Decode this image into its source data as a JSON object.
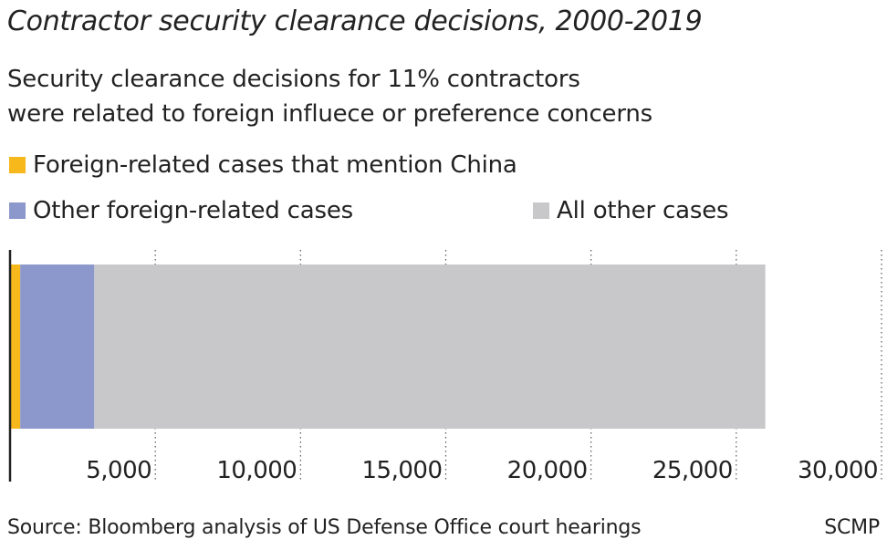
{
  "title": "Contractor security clearance decisions, 2000-2019",
  "subtitle_lines": [
    "Security clearance decisions for 11% contractors",
    "were related to foreign influece or preference concerns"
  ],
  "colors": {
    "china": "#f7b81c",
    "other_foreign": "#8c97cc",
    "all_other": "#c8c8ca",
    "axis": "#222222",
    "grid": "#555555"
  },
  "legend": [
    {
      "label": "Foreign-related cases that mention China",
      "color": "#f7b81c"
    },
    {
      "label": "Other foreign-related cases",
      "color": "#8c97cc"
    },
    {
      "label": "All other cases",
      "color": "#c8c8ca"
    }
  ],
  "chart_data": {
    "type": "bar",
    "orientation": "horizontal",
    "stacked": true,
    "categories": [
      ""
    ],
    "series": [
      {
        "name": "Foreign-related cases that mention China",
        "values": [
          350
        ]
      },
      {
        "name": "Other foreign-related cases",
        "values": [
          2550
        ]
      },
      {
        "name": "All other cases",
        "values": [
          23100
        ]
      }
    ],
    "xlim": [
      0,
      30000
    ],
    "xticks": [
      5000,
      10000,
      15000,
      20000,
      25000,
      30000
    ],
    "xtick_labels": [
      "5,000",
      "10,000",
      "15,000",
      "20,000",
      "25,000",
      "30,000"
    ],
    "grid": "vertical dotted",
    "title": "Contractor security clearance decisions, 2000-2019",
    "xlabel": "",
    "ylabel": ""
  },
  "footer": {
    "source": "Source: Bloomberg analysis of US Defense Office court hearings",
    "credit": "SCMP"
  }
}
